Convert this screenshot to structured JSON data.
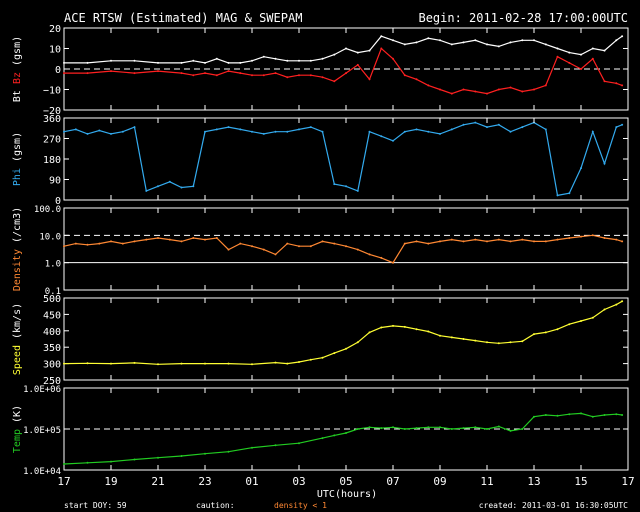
{
  "chart_data": {
    "type": "line",
    "title": "ACE RTSW (Estimated) MAG & SWEPAM",
    "begin": "Begin: 2011-02-28 17:00:00UTC",
    "xlabel": "UTC(hours)",
    "x_ticks": [
      "17",
      "19",
      "21",
      "23",
      "01",
      "03",
      "05",
      "07",
      "09",
      "11",
      "13",
      "15",
      "17"
    ],
    "footer": {
      "start_doy": "start DOY:  59",
      "caution": "caution:",
      "density_note": "density < 1",
      "created": "created: 2011-03-01 16:30:05UTC"
    },
    "colors": {
      "bt": "#ffffff",
      "bz": "#ff2020",
      "phi": "#33aaee",
      "density": "#ff8833",
      "speed": "#ffff33",
      "temp": "#22cc22",
      "axes": "#ffffff"
    },
    "panels": [
      {
        "id": "mag",
        "ylabel_parts": [
          {
            "text": "Bt",
            "color": "#ffffff"
          },
          {
            "text": " Bz",
            "color": "#ff2020"
          },
          {
            "text": " (gsm)",
            "color": "#ffffff"
          }
        ],
        "ylim": [
          -20,
          20
        ],
        "scale": "linear",
        "yticks": [
          20,
          10,
          0,
          -10,
          -20
        ],
        "ytick_labels": [
          "20",
          "10",
          "0",
          "−10",
          "−20"
        ],
        "dashed": [
          0
        ],
        "series": [
          {
            "key": "bt",
            "x": [
              0,
              2,
              4,
              6,
              8,
              10,
              11,
              12,
              13,
              14,
              15,
              16,
              17,
              18,
              19,
              20,
              21,
              22,
              23,
              24,
              25,
              26,
              27,
              28,
              29,
              30,
              31,
              32,
              33,
              34,
              35,
              36,
              37,
              38,
              39,
              40,
              41,
              42,
              43,
              44,
              45,
              46,
              47,
              47.5
            ],
            "y": [
              3,
              3,
              4,
              4,
              3,
              3,
              4,
              3,
              5,
              3,
              3,
              4,
              6,
              5,
              4,
              4,
              4,
              5,
              7,
              10,
              8,
              9,
              16,
              14,
              12,
              13,
              15,
              14,
              12,
              13,
              14,
              12,
              11,
              13,
              14,
              14,
              12,
              10,
              8,
              7,
              10,
              9,
              14,
              16
            ]
          },
          {
            "key": "bz",
            "x": [
              0,
              2,
              4,
              6,
              8,
              10,
              11,
              12,
              13,
              14,
              15,
              16,
              17,
              18,
              19,
              20,
              21,
              22,
              23,
              24,
              25,
              26,
              27,
              28,
              29,
              30,
              31,
              32,
              33,
              34,
              35,
              36,
              37,
              38,
              39,
              40,
              41,
              42,
              43,
              44,
              45,
              46,
              47,
              47.5
            ],
            "y": [
              -2,
              -2,
              -1,
              -2,
              -1,
              -2,
              -3,
              -2,
              -3,
              -1,
              -2,
              -3,
              -3,
              -2,
              -4,
              -3,
              -3,
              -4,
              -6,
              -2,
              2,
              -5,
              10,
              5,
              -3,
              -5,
              -8,
              -10,
              -12,
              -10,
              -11,
              -12,
              -10,
              -9,
              -11,
              -10,
              -8,
              6,
              3,
              0,
              5,
              -6,
              -7,
              -8
            ]
          }
        ]
      },
      {
        "id": "phi",
        "ylabel_parts": [
          {
            "text": "Phi",
            "color": "#33aaee"
          },
          {
            "text": " (gsm)",
            "color": "#ffffff"
          }
        ],
        "ylim": [
          0,
          360
        ],
        "scale": "linear",
        "yticks": [
          360,
          270,
          180,
          90,
          0
        ],
        "ytick_labels": [
          "360",
          "270",
          "180",
          "90",
          "0"
        ],
        "dashed": [],
        "series": [
          {
            "key": "phi",
            "x": [
              0,
              1,
              2,
              3,
              4,
              5,
              6,
              7,
              8,
              9,
              10,
              11,
              12,
              13,
              14,
              15,
              16,
              17,
              18,
              19,
              20,
              21,
              22,
              23,
              24,
              25,
              26,
              27,
              28,
              29,
              30,
              31,
              32,
              33,
              34,
              35,
              36,
              37,
              38,
              39,
              40,
              41,
              42,
              43,
              44,
              45,
              46,
              47,
              47.5
            ],
            "y": [
              300,
              310,
              290,
              305,
              290,
              300,
              320,
              40,
              60,
              80,
              55,
              60,
              300,
              310,
              320,
              310,
              300,
              290,
              300,
              300,
              310,
              320,
              300,
              70,
              60,
              40,
              300,
              280,
              260,
              300,
              310,
              300,
              290,
              310,
              330,
              340,
              320,
              330,
              300,
              320,
              340,
              310,
              20,
              30,
              140,
              300,
              160,
              320,
              330
            ]
          }
        ]
      },
      {
        "id": "density",
        "ylabel_parts": [
          {
            "text": "Density",
            "color": "#ff8833"
          },
          {
            "text": " (/cm3)",
            "color": "#ffffff"
          }
        ],
        "ylim": [
          0.1,
          100
        ],
        "scale": "log",
        "yticks": [
          100,
          10,
          1,
          0.1
        ],
        "ytick_labels": [
          "100.0",
          "10.0",
          "1.0",
          "0.1"
        ],
        "dashed": [
          10
        ],
        "solid": [
          1
        ],
        "series": [
          {
            "key": "density",
            "x": [
              0,
              1,
              2,
              3,
              4,
              5,
              6,
              7,
              8,
              9,
              10,
              11,
              12,
              13,
              14,
              15,
              16,
              17,
              18,
              19,
              20,
              21,
              22,
              23,
              24,
              25,
              26,
              27,
              28,
              29,
              30,
              31,
              32,
              33,
              34,
              35,
              36,
              37,
              38,
              39,
              40,
              41,
              42,
              43,
              44,
              45,
              46,
              47,
              47.5
            ],
            "y": [
              4,
              5,
              4.5,
              5,
              6,
              5,
              6,
              7,
              8,
              7,
              6,
              8,
              7,
              8,
              3,
              5,
              4,
              3,
              2,
              5,
              4,
              4,
              6,
              5,
              4,
              3,
              2,
              1.5,
              1,
              5,
              6,
              5,
              6,
              7,
              6,
              7,
              6,
              7,
              6,
              7,
              6,
              6,
              7,
              8,
              9,
              10,
              8,
              7,
              6
            ]
          }
        ]
      },
      {
        "id": "speed",
        "ylabel_parts": [
          {
            "text": "Speed",
            "color": "#ffff33"
          },
          {
            "text": " (km/s)",
            "color": "#ffffff"
          }
        ],
        "ylim": [
          250,
          500
        ],
        "scale": "linear",
        "yticks": [
          500,
          450,
          400,
          350,
          300,
          250
        ],
        "ytick_labels": [
          "500",
          "450",
          "400",
          "350",
          "300",
          "250"
        ],
        "dashed": [],
        "series": [
          {
            "key": "speed",
            "x": [
              0,
              2,
              4,
              6,
              8,
              10,
              12,
              14,
              16,
              18,
              19,
              20,
              21,
              22,
              23,
              24,
              25,
              26,
              27,
              28,
              29,
              30,
              31,
              32,
              33,
              34,
              35,
              36,
              37,
              38,
              39,
              40,
              41,
              42,
              43,
              44,
              45,
              46,
              47,
              47.5
            ],
            "y": [
              300,
              301,
              300,
              302,
              298,
              300,
              300,
              300,
              298,
              303,
              300,
              305,
              312,
              318,
              332,
              345,
              365,
              395,
              410,
              415,
              412,
              405,
              398,
              385,
              380,
              375,
              370,
              365,
              362,
              365,
              368,
              390,
              395,
              405,
              420,
              430,
              440,
              465,
              480,
              490
            ]
          }
        ]
      },
      {
        "id": "temp",
        "ylabel_parts": [
          {
            "text": "Temp",
            "color": "#22cc22"
          },
          {
            "text": " (K)",
            "color": "#ffffff"
          }
        ],
        "ylim": [
          10000,
          1000000
        ],
        "scale": "log",
        "yticks": [
          1000000,
          100000,
          10000
        ],
        "ytick_labels": [
          "1.0E+06",
          "1.0E+05",
          "1.0E+04"
        ],
        "dashed": [
          100000
        ],
        "series": [
          {
            "key": "temp",
            "x": [
              0,
              2,
              4,
              6,
              8,
              10,
              12,
              14,
              16,
              18,
              20,
              22,
              23,
              24,
              25,
              26,
              27,
              28,
              29,
              30,
              31,
              32,
              33,
              34,
              35,
              36,
              37,
              38,
              39,
              40,
              41,
              42,
              43,
              44,
              45,
              46,
              47,
              47.5
            ],
            "y": [
              14000,
              15000,
              16000,
              18000,
              20000,
              22000,
              25000,
              28000,
              35000,
              40000,
              45000,
              60000,
              70000,
              80000,
              100000,
              110000,
              105000,
              110000,
              100000,
              105000,
              110000,
              110000,
              100000,
              105000,
              110000,
              100000,
              115000,
              90000,
              100000,
              200000,
              220000,
              210000,
              230000,
              240000,
              200000,
              220000,
              230000,
              220000
            ]
          }
        ]
      }
    ]
  }
}
